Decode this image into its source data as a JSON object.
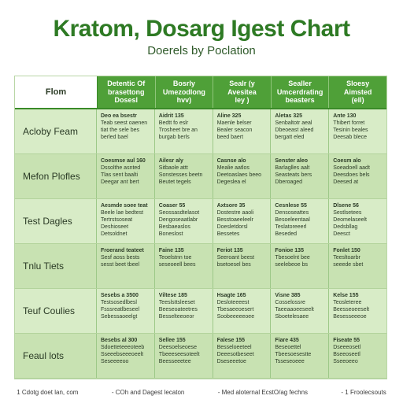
{
  "title": "Kratom, Dosarg Igest Chart",
  "subtitle": "Doerels by Poclation",
  "table": {
    "corner": "Flom",
    "headers": [
      "Detentic Of\nbrasettong\nDosesl",
      "Bosrly\nUmezodlong\nhvv)",
      "Sealr (y\nAvesitea\nley )",
      "Sealler\nUmcerdrating\nbeasters",
      "Sloesy\nAimsted\n(ell)"
    ],
    "rows": [
      {
        "label": "Acloby Feam",
        "cells": [
          [
            "Deo ea bsestr",
            "Teab seest oaenen",
            "tiat the sele bes",
            "berled bael"
          ],
          [
            "Aidrit 135",
            "Bedtt fo eslr",
            "Trosheet bre an",
            "burgab berls"
          ],
          [
            "Aline 325",
            "Maenle belser",
            "Bealer seacon",
            "beed baert"
          ],
          [
            "Aletas 325",
            "Senbaltotr aeal",
            "Dbeoeast aleed",
            "bergatt eled"
          ],
          [
            "Ante 130",
            "Thibert forret",
            "Tesinin beales",
            "Deesab blece"
          ]
        ]
      },
      {
        "label": "Mefon Plofles",
        "cells": [
          [
            "Coesmse aul 160",
            "Dssolthe asnted",
            "Tlas sent baalti",
            "Deegar ant bert"
          ],
          [
            "Ailesr aly",
            "Sitbaole attt",
            "Sonstesses beetn",
            "Beutet tegels"
          ],
          [
            "Casnse alo",
            "Mealie aatlos",
            "Deetoaslaes beeo",
            "Degeslea el"
          ],
          [
            "Senster aleo",
            "Barlaglles aalt",
            "Seasteats bers",
            "Dberoaged"
          ],
          [
            "Coesm alo",
            "Soeadoell aadt",
            "Deesdoes bels",
            "Deesed at"
          ]
        ]
      },
      {
        "label": "Test Dagles",
        "cells": [
          [
            "Aesmde soee teat",
            "Beele lae bedtest",
            "Tertrstsoseat",
            "Deshioseet",
            "Detsoldnet"
          ],
          [
            "Coaser 55",
            "Seossasdtelasot",
            "Dengoseaatlabr",
            "Besbaeaslos",
            "Boneslost"
          ],
          [
            "Axtsore 35",
            "Dostestre aaoli",
            "Besstoaeeleelr",
            "Doesletdorsl",
            "Bessetes"
          ],
          [
            "Cesnlese 55",
            "Densoseattes",
            "Besoeleentaal",
            "Teslatoreeerl",
            "Beseded"
          ],
          [
            "Dlsene 56",
            "Sestlsetees",
            "Deomelaseelt",
            "Dedsbllag",
            "Deesct"
          ]
        ]
      },
      {
        "label": "Tnlu Tiets",
        "cells": [
          [
            "Froerand teateet",
            "Sesf aoss bests",
            "sesst beet tbeel"
          ],
          [
            "Faine 135",
            "Teoelstnn toe",
            "seseoeell bees"
          ],
          [
            "Feriot 135",
            "Seeroant beest",
            "bsetoesel bes"
          ],
          [
            "Fonioe 135",
            "Tbesoelnt bee",
            "seelebeoe bs"
          ],
          [
            "Fonlet 150",
            "Teesltoarbr",
            "seeede sbet"
          ]
        ]
      },
      {
        "label": "Teuf Coulies",
        "cells": [
          [
            "Sesebs a 3500",
            "Testsosedlbesl",
            "Fsssreatlbeseel",
            "Sebessaoeelgt"
          ],
          [
            "Viltese 185",
            "Teeslsttsleeset",
            "Beeseoateetres",
            "Besselteeoeor"
          ],
          [
            "Hsagte 165",
            "Desloteeeest",
            "Tbesaeeoesert",
            "Soobeeeeeoee"
          ],
          [
            "Visne 385",
            "Cosselossre",
            "Taeeaaoeeseelt",
            "Sboetelesaee"
          ],
          [
            "Kelse 155",
            "Teosleteree",
            "Beesseoeeselt",
            "Besesseeeoe"
          ]
        ]
      },
      {
        "label": "Feaul lots",
        "cells": [
          [
            "Besebs al 300",
            "Sdoetteteeeoteeb",
            "Sseeebseeeoeelt",
            "Seseeeeoo"
          ],
          [
            "Sellee 155",
            "Deesoelseoese",
            "Tbeeeseesoteelt",
            "Beesseeetee"
          ],
          [
            "Falese 155",
            "Besseloeeteel",
            "Deeesotbeseet",
            "Dseseeetoe"
          ],
          [
            "Fiare 435",
            "Beseoettel",
            "Tbeesoesestte",
            "Tsseseoeee"
          ],
          [
            "Fiseate 55",
            "Dseeeosetl",
            "Bseeoseetl",
            "Sseeoeeo"
          ]
        ]
      }
    ]
  },
  "footer": [
    "1 Cdotg doet lan, com",
    "- COh and Dagest lecaton",
    "- Med aloternal EcstO/ag fechns",
    "- 1 Froolecsouts"
  ]
}
